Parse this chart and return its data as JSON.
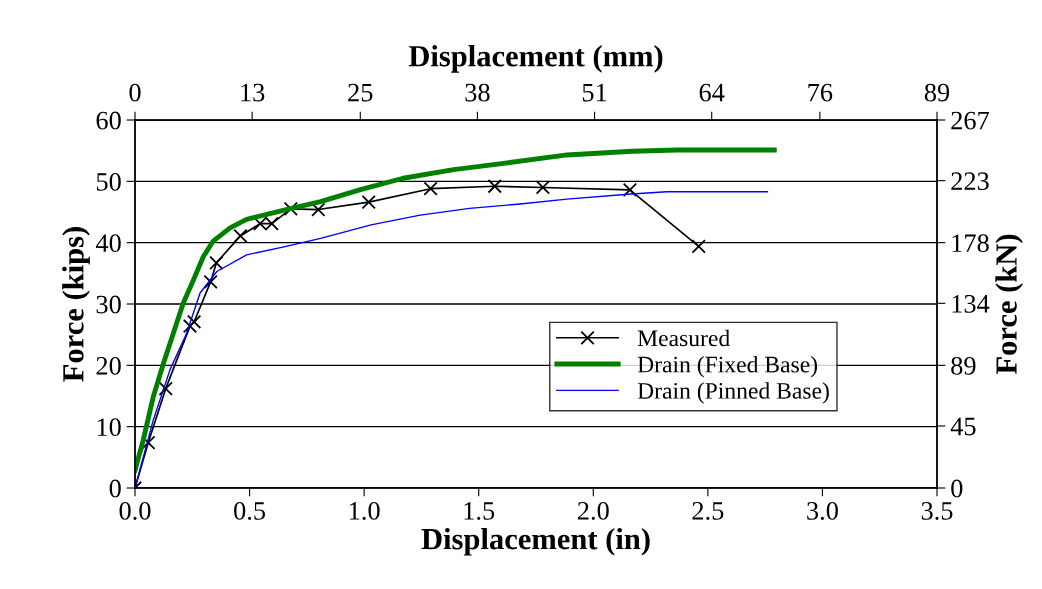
{
  "chart_data": {
    "type": "line",
    "xlabel": "Displacement (in)",
    "ylabel": "Force (kips)",
    "x2label": "Displacement (mm)",
    "y2label": "Force (kN)",
    "xlim": [
      0,
      3.5
    ],
    "xticks": [
      {
        "value": 0,
        "label": "0.0"
      },
      {
        "value": 0.5,
        "label": "0.5"
      },
      {
        "value": 1,
        "label": "1.0"
      },
      {
        "value": 1.5,
        "label": "1.5"
      },
      {
        "value": 2,
        "label": "2.0"
      },
      {
        "value": 2.5,
        "label": "2.5"
      },
      {
        "value": 3,
        "label": "3.0"
      },
      {
        "value": 3.5,
        "label": "3.5"
      }
    ],
    "ylim": [
      0,
      60
    ],
    "yticks": [
      0,
      10,
      20,
      30,
      40,
      50,
      60
    ],
    "x2lim": [
      0,
      89
    ],
    "x2ticks": [
      0,
      13,
      25,
      38,
      51,
      64,
      76,
      89
    ],
    "y2lim": [
      0,
      267
    ],
    "y2ticks": [
      0,
      45,
      89,
      134,
      178,
      223,
      267
    ],
    "grid": "y",
    "legend": "right",
    "series": [
      {
        "name": "Measured",
        "color": "#000000",
        "marker": "cross",
        "x": [
          0,
          0.058,
          0.134,
          0.24,
          0.258,
          0.33,
          0.355,
          0.46,
          0.546,
          0.597,
          0.68,
          0.8,
          1.02,
          1.29,
          1.57,
          1.78,
          2.16,
          2.46
        ],
        "values": [
          0,
          7.4,
          16.2,
          26.4,
          27.1,
          33.6,
          36.7,
          41.1,
          43.1,
          43.1,
          45.5,
          45.4,
          46.6,
          48.8,
          49.2,
          49.0,
          48.6,
          39.4
        ]
      },
      {
        "name": "Drain (Fixed Base)",
        "color": "#008000",
        "x": [
          0,
          0.036,
          0.08,
          0.124,
          0.167,
          0.21,
          0.255,
          0.298,
          0.34,
          0.415,
          0.487,
          0.66,
          0.81,
          0.98,
          1.17,
          1.39,
          1.6,
          1.885,
          2.17,
          2.365,
          2.79
        ],
        "values": [
          2.9,
          7.8,
          14.9,
          20.3,
          25.2,
          30.1,
          33.9,
          37.7,
          40.2,
          42.4,
          43.8,
          45.4,
          46.7,
          48.6,
          50.5,
          51.9,
          52.9,
          54.3,
          54.9,
          55.1,
          55.1
        ]
      },
      {
        "name": "Drain (Pinned Base)",
        "color": "#0000ff",
        "x": [
          0,
          0.08,
          0.153,
          0.225,
          0.284,
          0.357,
          0.487,
          0.66,
          0.81,
          1.03,
          1.245,
          1.46,
          1.68,
          1.885,
          2.15,
          2.32,
          2.76
        ],
        "values": [
          0,
          11.1,
          19.3,
          25.2,
          31.8,
          35.3,
          38.0,
          39.4,
          40.7,
          42.9,
          44.5,
          45.6,
          46.3,
          47.1,
          47.9,
          48.3,
          48.3
        ]
      }
    ]
  }
}
